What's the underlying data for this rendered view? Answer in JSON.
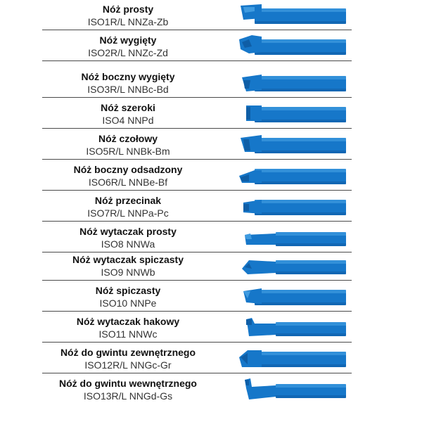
{
  "colors": {
    "tool_fill": "#1677c9",
    "tool_shade": "#0f5ea6",
    "tool_light": "#3f9be0",
    "divider": "#4a4a4a"
  },
  "tools": [
    {
      "name": "Nóż prosty",
      "code": "ISO1R/L NNZa-Zb",
      "shape": "straight"
    },
    {
      "name": "Nóż wygięty",
      "code": "ISO2R/L NNZc-Zd",
      "shape": "bent"
    },
    {
      "name": "Nóż boczny wygięty",
      "code": "ISO3R/L NNBc-Bd",
      "shape": "side-bent"
    },
    {
      "name": "Nóż szeroki",
      "code": "ISO4 NNPd",
      "shape": "wide"
    },
    {
      "name": "Nóż czołowy",
      "code": "ISO5R/L NNBk-Bm",
      "shape": "facing"
    },
    {
      "name": "Nóż boczny odsadzony",
      "code": "ISO6R/L NNBe-Bf",
      "shape": "side-offset"
    },
    {
      "name": "Nóż przecinak",
      "code": "ISO7R/L NNPa-Pc",
      "shape": "parting"
    },
    {
      "name": "Nóż wytaczak prosty",
      "code": "ISO8 NNWa",
      "shape": "boring-straight"
    },
    {
      "name": "Nóż wytaczak spiczasty",
      "code": "ISO9 NNWb",
      "shape": "boring-pointed"
    },
    {
      "name": "Nóż spiczasty",
      "code": "ISO10 NNPe",
      "shape": "pointed"
    },
    {
      "name": "Nóż wytaczak hakowy",
      "code": "ISO11 NNWc",
      "shape": "boring-hook"
    },
    {
      "name": "Nóż do gwintu zewnętrznego",
      "code": "ISO12R/L  NNGc-Gr",
      "shape": "thread-external"
    },
    {
      "name": "Nóż do gwintu wewnętrznego",
      "code": "ISO13R/L NNGd-Gs",
      "shape": "thread-internal"
    }
  ]
}
